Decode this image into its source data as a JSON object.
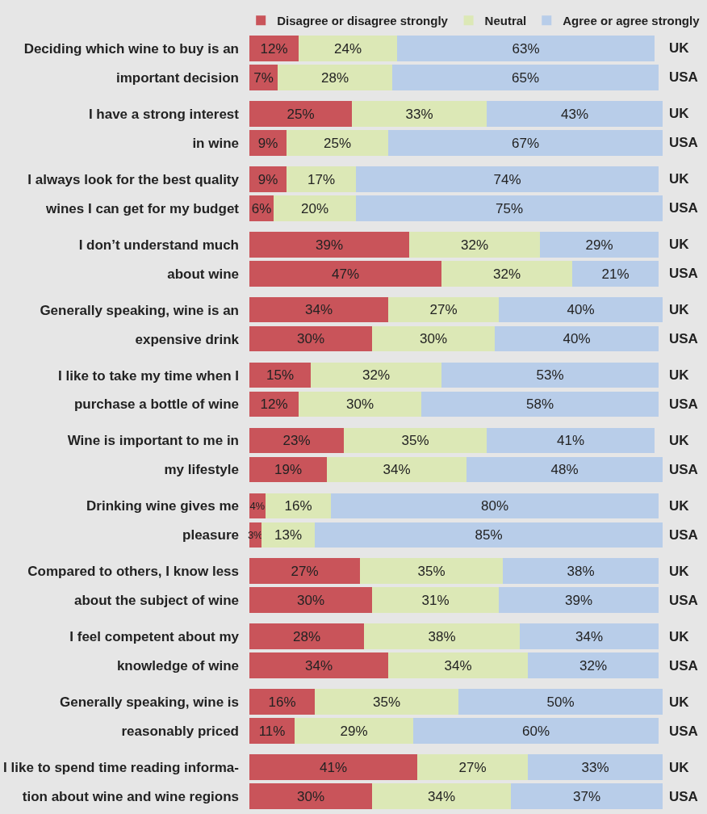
{
  "chart_data": {
    "type": "bar",
    "orientation": "horizontal",
    "stacked": true,
    "legend": "top right",
    "grid": false,
    "tick_labels": "y",
    "xlim": [
      0,
      101
    ],
    "categories": [
      "Deciding which wine to buy is an",
      "important decision",
      "I have a strong interest",
      "in wine",
      "I always look for the best quality",
      "wines I can get for my budget",
      "I don’t understand much",
      "about wine",
      "Generally speaking, wine is an",
      "expensive drink",
      "I like to take my time when I",
      "purchase a bottle of wine",
      "Wine is important to me in",
      "my lifestyle",
      "Drinking wine gives me",
      "pleasure",
      "Compared to others, I know less",
      "about the subject of wine",
      "I feel competent about my",
      "knowledge of wine",
      "Generally speaking, wine is",
      "reasonably priced",
      "I like to spend time reading informa-",
      "tion about wine and wine regions"
    ],
    "series": [
      {
        "name": "Disagree or disagree strongly",
        "color": "#c9545a",
        "values": [
          12,
          7,
          25,
          9,
          9,
          6,
          39,
          47,
          34,
          30,
          15,
          12,
          23,
          19,
          4,
          3,
          27,
          30,
          28,
          34,
          16,
          11,
          41,
          30
        ],
        "value_labels": [
          "12%",
          "7%",
          "25%",
          "9%",
          "9%",
          "6%",
          "39%",
          "47%",
          "34%",
          "30%",
          "15%",
          "12%",
          "23%",
          "19%",
          "4%",
          "3%",
          "27%",
          "30%",
          "28%",
          "34%",
          "16%",
          "11%",
          "41%",
          "30%"
        ]
      },
      {
        "name": "Neutral",
        "color": "#dce8b6",
        "values": [
          24,
          28,
          33,
          25,
          17,
          20,
          32,
          32,
          27,
          30,
          32,
          30,
          35,
          34,
          16,
          13,
          35,
          31,
          38,
          34,
          35,
          29,
          27,
          34
        ],
        "value_labels": [
          "24%",
          "28%",
          "33%",
          "25%",
          "17%",
          "20%",
          "32%",
          "32%",
          "27%",
          "30%",
          "32%",
          "30%",
          "35%",
          "34%",
          "16%",
          "13%",
          "35%",
          "31%",
          "38%",
          "34%",
          "35%",
          "29%",
          "27%",
          "34%"
        ]
      },
      {
        "name": "Agree or agree strongly",
        "color": "#b8cde9",
        "values": [
          63,
          65,
          43,
          67,
          74,
          75,
          29,
          21,
          40,
          40,
          53,
          58,
          41,
          48,
          80,
          85,
          38,
          39,
          34,
          32,
          50,
          60,
          33,
          37
        ],
        "value_labels": [
          "63%",
          "65%",
          "43%",
          "67%",
          "74%",
          "75%",
          "29%",
          "21%",
          "40%",
          "40%",
          "53%",
          "58%",
          "41%",
          "48%",
          "80%",
          "85%",
          "38%",
          "39%",
          "34%",
          "32%",
          "50%",
          "60%",
          "33%",
          "37%"
        ]
      }
    ],
    "annotations": [
      "UK",
      "USA",
      "UK",
      "USA",
      "UK",
      "USA",
      "UK",
      "USA",
      "UK",
      "USA",
      "UK",
      "USA",
      "UK",
      "USA",
      "UK",
      "USA",
      "UK",
      "USA",
      "UK",
      "USA",
      "UK",
      "USA",
      "UK",
      "USA"
    ]
  }
}
